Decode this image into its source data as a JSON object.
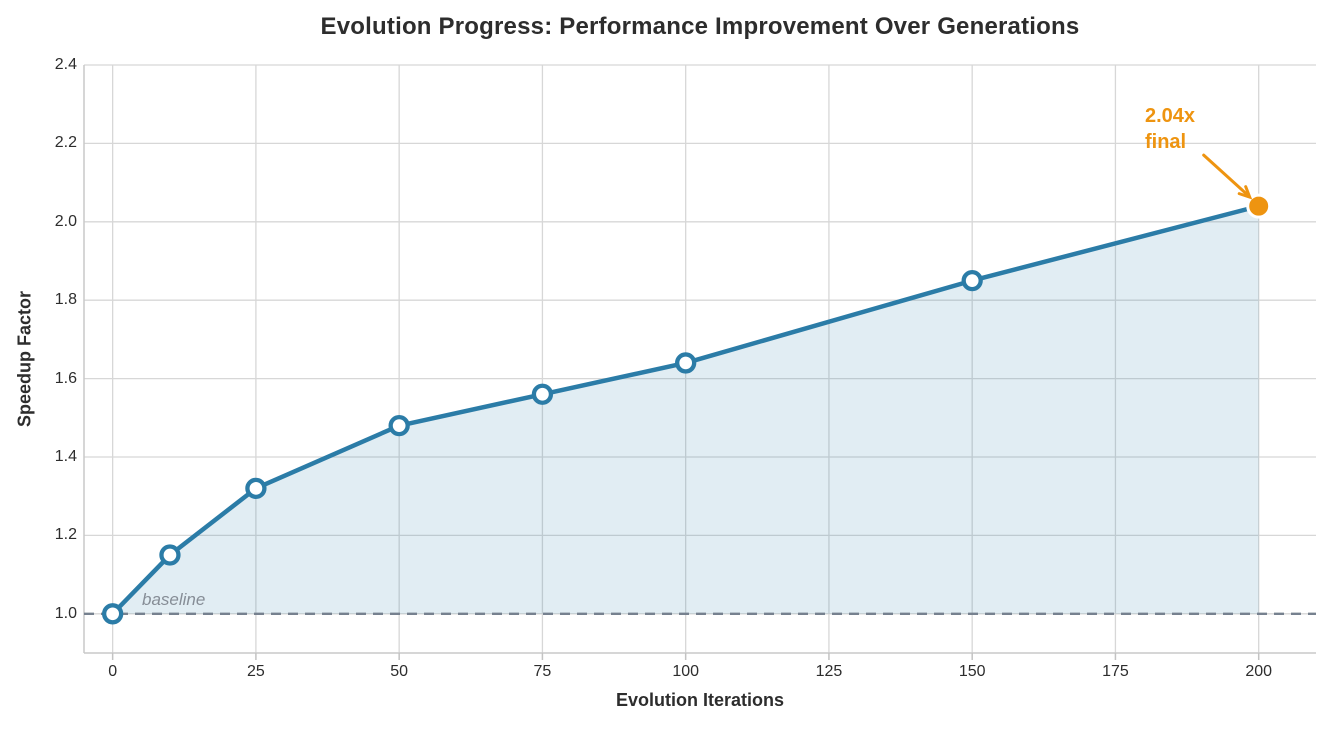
{
  "chart_data": {
    "type": "line",
    "title": "Evolution Progress: Performance Improvement Over Generations",
    "xlabel": "Evolution Iterations",
    "ylabel": "Speedup Factor",
    "x": [
      0,
      10,
      25,
      50,
      75,
      100,
      150,
      200
    ],
    "y": [
      1.0,
      1.15,
      1.32,
      1.48,
      1.56,
      1.64,
      1.85,
      2.04
    ],
    "xticks": [
      "0",
      "25",
      "50",
      "75",
      "100",
      "125",
      "150",
      "175",
      "200"
    ],
    "yticks": [
      "1.0",
      "1.2",
      "1.4",
      "1.6",
      "1.8",
      "2.0",
      "2.2",
      "2.4"
    ],
    "xlim": [
      -5,
      210
    ],
    "ylim": [
      0.9,
      2.4
    ],
    "grid": true,
    "legend_position": "none",
    "baseline": {
      "value": 1.0,
      "label": "baseline"
    },
    "final_point": {
      "x": 200,
      "y": 2.04
    },
    "annotation": {
      "line1": "2.04x",
      "line2": "final",
      "target_x": 200,
      "target_y": 2.04
    },
    "colors": {
      "line": "#2b7ca7",
      "fill": "rgba(43,124,167,0.14)",
      "marker_fill": "#ffffff",
      "final_point": "#ee9410",
      "annotation_text": "#ee9410",
      "baseline_dash": "#76818f",
      "baseline_label_text": "#868d96",
      "grid": "#d7d7d7",
      "spine": "#c9c9c9",
      "tick_mark": "#c3c3c3",
      "text": "#2d2d2d"
    }
  }
}
